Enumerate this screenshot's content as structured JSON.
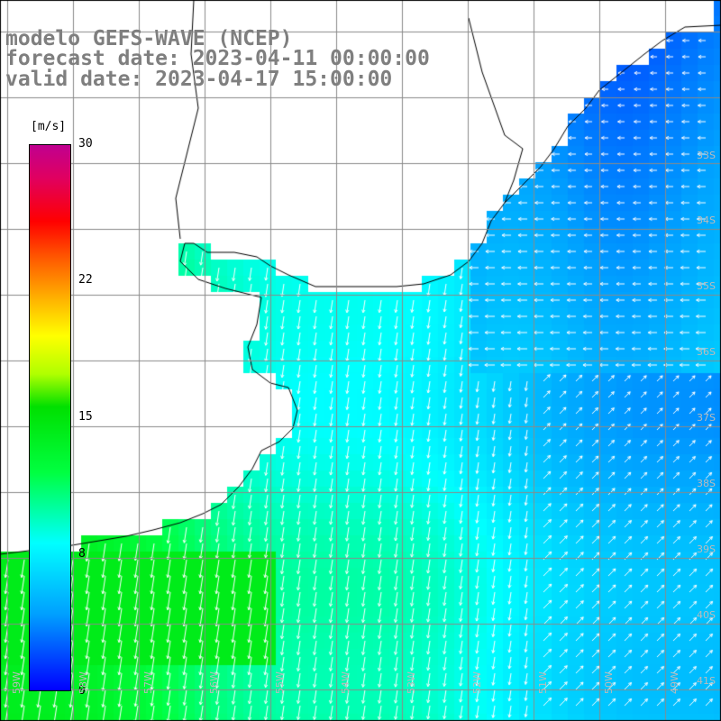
{
  "title": {
    "line1": "modelo GEFS-WAVE (NCEP)",
    "line2": "forecast date: 2023-04-11 00:00:00",
    "line3": "valid date: 2023-04-17 15:00:00"
  },
  "colorbar": {
    "unit": "[m/s]",
    "ticks": [
      "30",
      "22",
      "15",
      "8",
      "0"
    ],
    "range": [
      0,
      30
    ]
  },
  "latitude_labels": [
    "33S",
    "34S",
    "35S",
    "36S",
    "37S",
    "38S",
    "39S",
    "40S",
    "41S"
  ],
  "longitude_labels": [
    "59W",
    "58W",
    "57W",
    "56W",
    "55W",
    "54W",
    "53W",
    "52W",
    "51W",
    "50W",
    "49W"
  ],
  "map": {
    "variable": "wind speed and direction",
    "colors": {
      "land": "#ffffff",
      "coastline": "#000000",
      "grid": "#888888",
      "vectors": "#ffffff"
    }
  }
}
